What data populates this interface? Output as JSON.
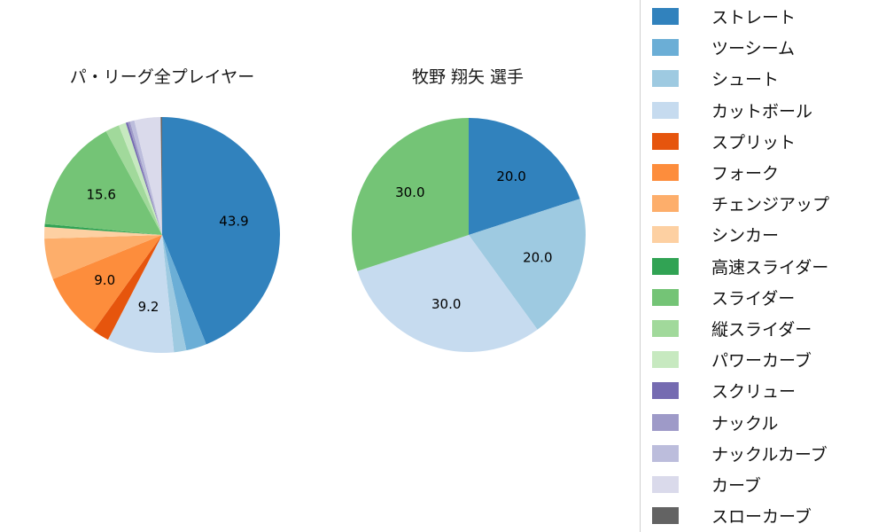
{
  "page": {
    "background": "#ffffff"
  },
  "pitch_types": [
    {
      "label": "ストレート",
      "color": "#3182bd"
    },
    {
      "label": "ツーシーム",
      "color": "#6baed6"
    },
    {
      "label": "シュート",
      "color": "#9ecae1"
    },
    {
      "label": "カットボール",
      "color": "#c6dbef"
    },
    {
      "label": "スプリット",
      "color": "#e6550d"
    },
    {
      "label": "フォーク",
      "color": "#fd8d3c"
    },
    {
      "label": "チェンジアップ",
      "color": "#fdae6b"
    },
    {
      "label": "シンカー",
      "color": "#fdd0a2"
    },
    {
      "label": "高速スライダー",
      "color": "#31a354"
    },
    {
      "label": "スライダー",
      "color": "#74c476"
    },
    {
      "label": "縦スライダー",
      "color": "#a1d99b"
    },
    {
      "label": "パワーカーブ",
      "color": "#c7e9c0"
    },
    {
      "label": "スクリュー",
      "color": "#756bb1"
    },
    {
      "label": "ナックル",
      "color": "#9e9ac8"
    },
    {
      "label": "ナックルカーブ",
      "color": "#bcbddc"
    },
    {
      "label": "カーブ",
      "color": "#dadaeb"
    },
    {
      "label": "スローカーブ",
      "color": "#636363"
    }
  ],
  "chart_data": [
    {
      "type": "pie",
      "title": "パ・リーグ全プレイヤー",
      "unit": "percent",
      "direction": "clockwise",
      "start_angle": "top",
      "label_threshold": 8,
      "categories": [
        "ストレート",
        "ツーシーム",
        "シュート",
        "カットボール",
        "スプリット",
        "フォーク",
        "チェンジアップ",
        "シンカー",
        "高速スライダー",
        "スライダー",
        "縦スライダー",
        "パワーカーブ",
        "スクリュー",
        "ナックル",
        "ナックルカーブ",
        "カーブ",
        "スローカーブ"
      ],
      "values": [
        43.9,
        2.8,
        1.7,
        9.2,
        2.3,
        9.0,
        5.6,
        1.6,
        0.4,
        15.6,
        1.9,
        1.0,
        0.3,
        0.3,
        0.6,
        3.6,
        0.2
      ],
      "labeled_values": [
        "43.9",
        "9.2",
        "9.0",
        "15.6"
      ]
    },
    {
      "type": "pie",
      "title": "牧野 翔矢 選手",
      "unit": "percent",
      "direction": "clockwise",
      "start_angle": "top",
      "label_threshold": 8,
      "categories": [
        "ストレート",
        "シュート",
        "カットボール",
        "スライダー"
      ],
      "values": [
        20.0,
        20.0,
        30.0,
        30.0
      ],
      "labeled_values": [
        "20.0",
        "20.0",
        "30.0",
        "30.0"
      ]
    }
  ],
  "legend": {
    "position": "right"
  }
}
